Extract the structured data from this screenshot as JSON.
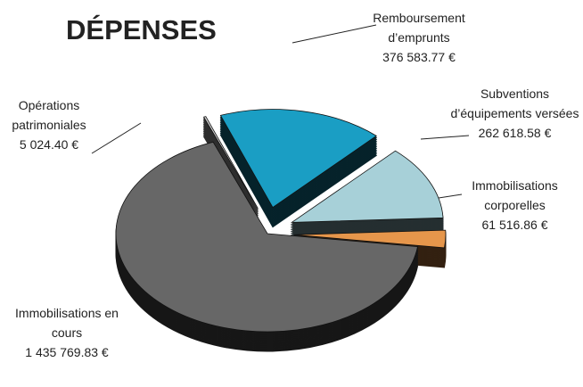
{
  "chart_data": {
    "type": "pie",
    "title": "DÉPENSES",
    "categories": [
      "Opérations patrimoniales",
      "Remboursement d’emprunts",
      "Subventions d’équipements versées",
      "Immobilisations corporelles",
      "Immobilisations en cours"
    ],
    "values": [
      5024.4,
      376583.77,
      262618.58,
      61516.86,
      1435769.83
    ],
    "value_labels": [
      "5 024.40 €",
      "376 583.77 €",
      "262 618.58 €",
      "61 516.86 €",
      "1 435 769.83 €"
    ],
    "colors": [
      "#cfcfcf",
      "#1a9ec4",
      "#a7d0d8",
      "#e6964b",
      "#676767"
    ]
  }
}
